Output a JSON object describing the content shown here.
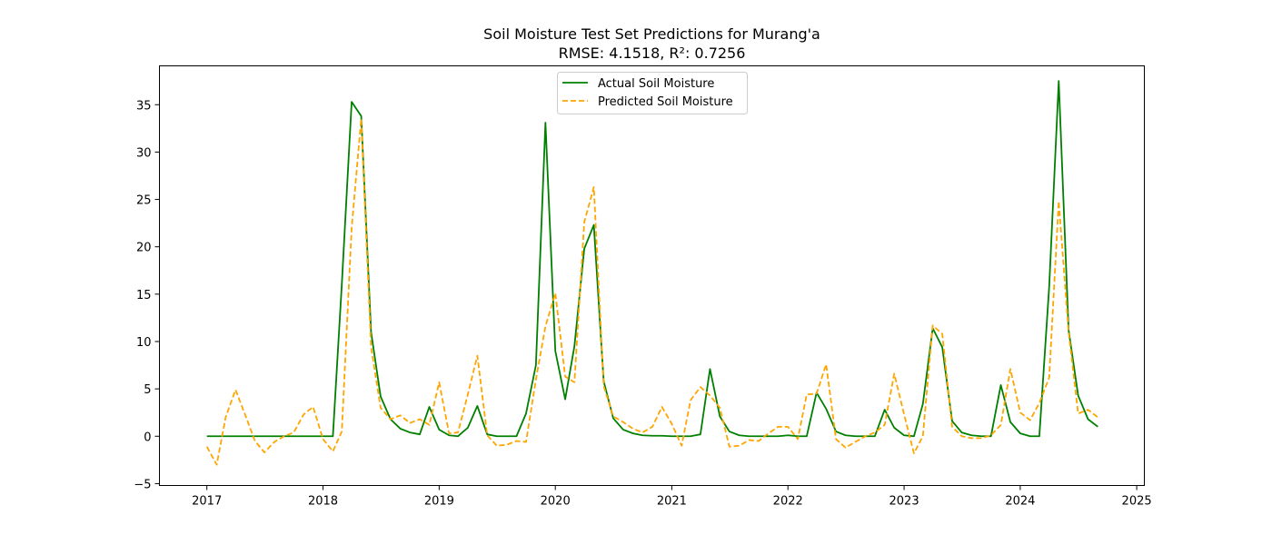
{
  "chart_data": {
    "type": "line",
    "title": "Soil Moisture Test Set Predictions for Murang'a",
    "subtitle": "RMSE: 4.1518, R²: 0.7256",
    "xlabel": "",
    "ylabel": "",
    "xlim": [
      "2016-08-05",
      "2025-01-25"
    ],
    "ylim": [
      -5.2,
      39.1
    ],
    "x_ticks": [
      "2017",
      "2018",
      "2019",
      "2020",
      "2021",
      "2022",
      "2023",
      "2024",
      "2025"
    ],
    "y_ticks": [
      "−5",
      "0",
      "5",
      "10",
      "15",
      "20",
      "25",
      "30",
      "35"
    ],
    "grid": false,
    "legend_placement": "upper center",
    "x": [
      "2017-01",
      "2017-02",
      "2017-03",
      "2017-04",
      "2017-05",
      "2017-06",
      "2017-07",
      "2017-08",
      "2017-09",
      "2017-10",
      "2017-11",
      "2017-12",
      "2018-01",
      "2018-02",
      "2018-03",
      "2018-04",
      "2018-05",
      "2018-06",
      "2018-07",
      "2018-08",
      "2018-09",
      "2018-10",
      "2018-11",
      "2018-12",
      "2019-01",
      "2019-02",
      "2019-03",
      "2019-04",
      "2019-05",
      "2019-06",
      "2019-07",
      "2019-08",
      "2019-09",
      "2019-10",
      "2019-11",
      "2019-12",
      "2020-01",
      "2020-02",
      "2020-03",
      "2020-04",
      "2020-05",
      "2020-06",
      "2020-07",
      "2020-08",
      "2020-09",
      "2020-10",
      "2020-11",
      "2020-12",
      "2021-01",
      "2021-02",
      "2021-03",
      "2021-04",
      "2021-05",
      "2021-06",
      "2021-07",
      "2021-08",
      "2021-09",
      "2021-10",
      "2021-11",
      "2021-12",
      "2022-01",
      "2022-02",
      "2022-03",
      "2022-04",
      "2022-05",
      "2022-06",
      "2022-07",
      "2022-08",
      "2022-09",
      "2022-10",
      "2022-11",
      "2022-12",
      "2023-01",
      "2023-02",
      "2023-03",
      "2023-04",
      "2023-05",
      "2023-06",
      "2023-07",
      "2023-08",
      "2023-09",
      "2023-10",
      "2023-11",
      "2023-12",
      "2024-01",
      "2024-02",
      "2024-03",
      "2024-04",
      "2024-05",
      "2024-06",
      "2024-07",
      "2024-08",
      "2024-09"
    ],
    "series": [
      {
        "name": "Actual Soil Moisture",
        "color": "#008000",
        "style": "solid",
        "values": [
          0,
          0,
          0,
          0,
          0,
          0,
          0,
          0,
          0,
          0,
          0,
          0,
          0,
          0,
          16,
          35.3,
          33.8,
          11,
          4.2,
          1.8,
          0.8,
          0.4,
          0.2,
          3.1,
          0.7,
          0.1,
          0,
          0.9,
          3.2,
          0.2,
          0,
          0,
          0,
          2.4,
          7.5,
          33.1,
          9,
          3.9,
          9.5,
          19.8,
          22.3,
          5.8,
          1.9,
          0.7,
          0.3,
          0.1,
          0.05,
          0.05,
          0,
          0,
          0,
          0.2,
          7.1,
          2.1,
          0.5,
          0.1,
          0,
          0,
          0,
          0,
          0.1,
          0,
          0,
          4.6,
          2.9,
          0.5,
          0.1,
          0,
          0,
          0,
          2.8,
          0.9,
          0.1,
          0,
          3.4,
          11.4,
          9.4,
          1.6,
          0.4,
          0.1,
          0,
          0,
          5.4,
          1.5,
          0.3,
          0,
          0,
          15.8,
          37.5,
          11.2,
          4.3,
          1.8,
          1
        ]
      },
      {
        "name": "Predicted Soil Moisture",
        "color": "#FFA500",
        "style": "dashed",
        "values": [
          -1.1,
          -3,
          2,
          4.9,
          2.3,
          -0.5,
          -1.7,
          -0.6,
          0,
          0.4,
          2.3,
          3.1,
          -0.3,
          -1.6,
          0.5,
          22,
          33.5,
          9.4,
          3,
          1.8,
          2.2,
          1.4,
          1.8,
          1.2,
          5.7,
          0.3,
          0.4,
          4.4,
          8.5,
          0.1,
          -1,
          -0.9,
          -0.5,
          -0.6,
          6,
          11.6,
          15.1,
          6.3,
          5.7,
          22.6,
          26.3,
          5.3,
          2.1,
          1.5,
          0.8,
          0.4,
          1,
          3.1,
          1.3,
          -1,
          3.8,
          5.2,
          4.3,
          3,
          -1.1,
          -1,
          -0.4,
          -0.5,
          0.3,
          1,
          1,
          -0.3,
          4.4,
          4.5,
          7.6,
          -0.3,
          -1.2,
          -0.6,
          0,
          0.4,
          1.2,
          6.6,
          2.3,
          -1.8,
          0,
          11.7,
          10.8,
          1,
          0,
          -0.2,
          -0.2,
          0.1,
          1.2,
          7.1,
          2.5,
          1.7,
          3.5,
          6.2,
          24.8,
          11,
          2.4,
          2.8,
          2
        ]
      }
    ]
  }
}
